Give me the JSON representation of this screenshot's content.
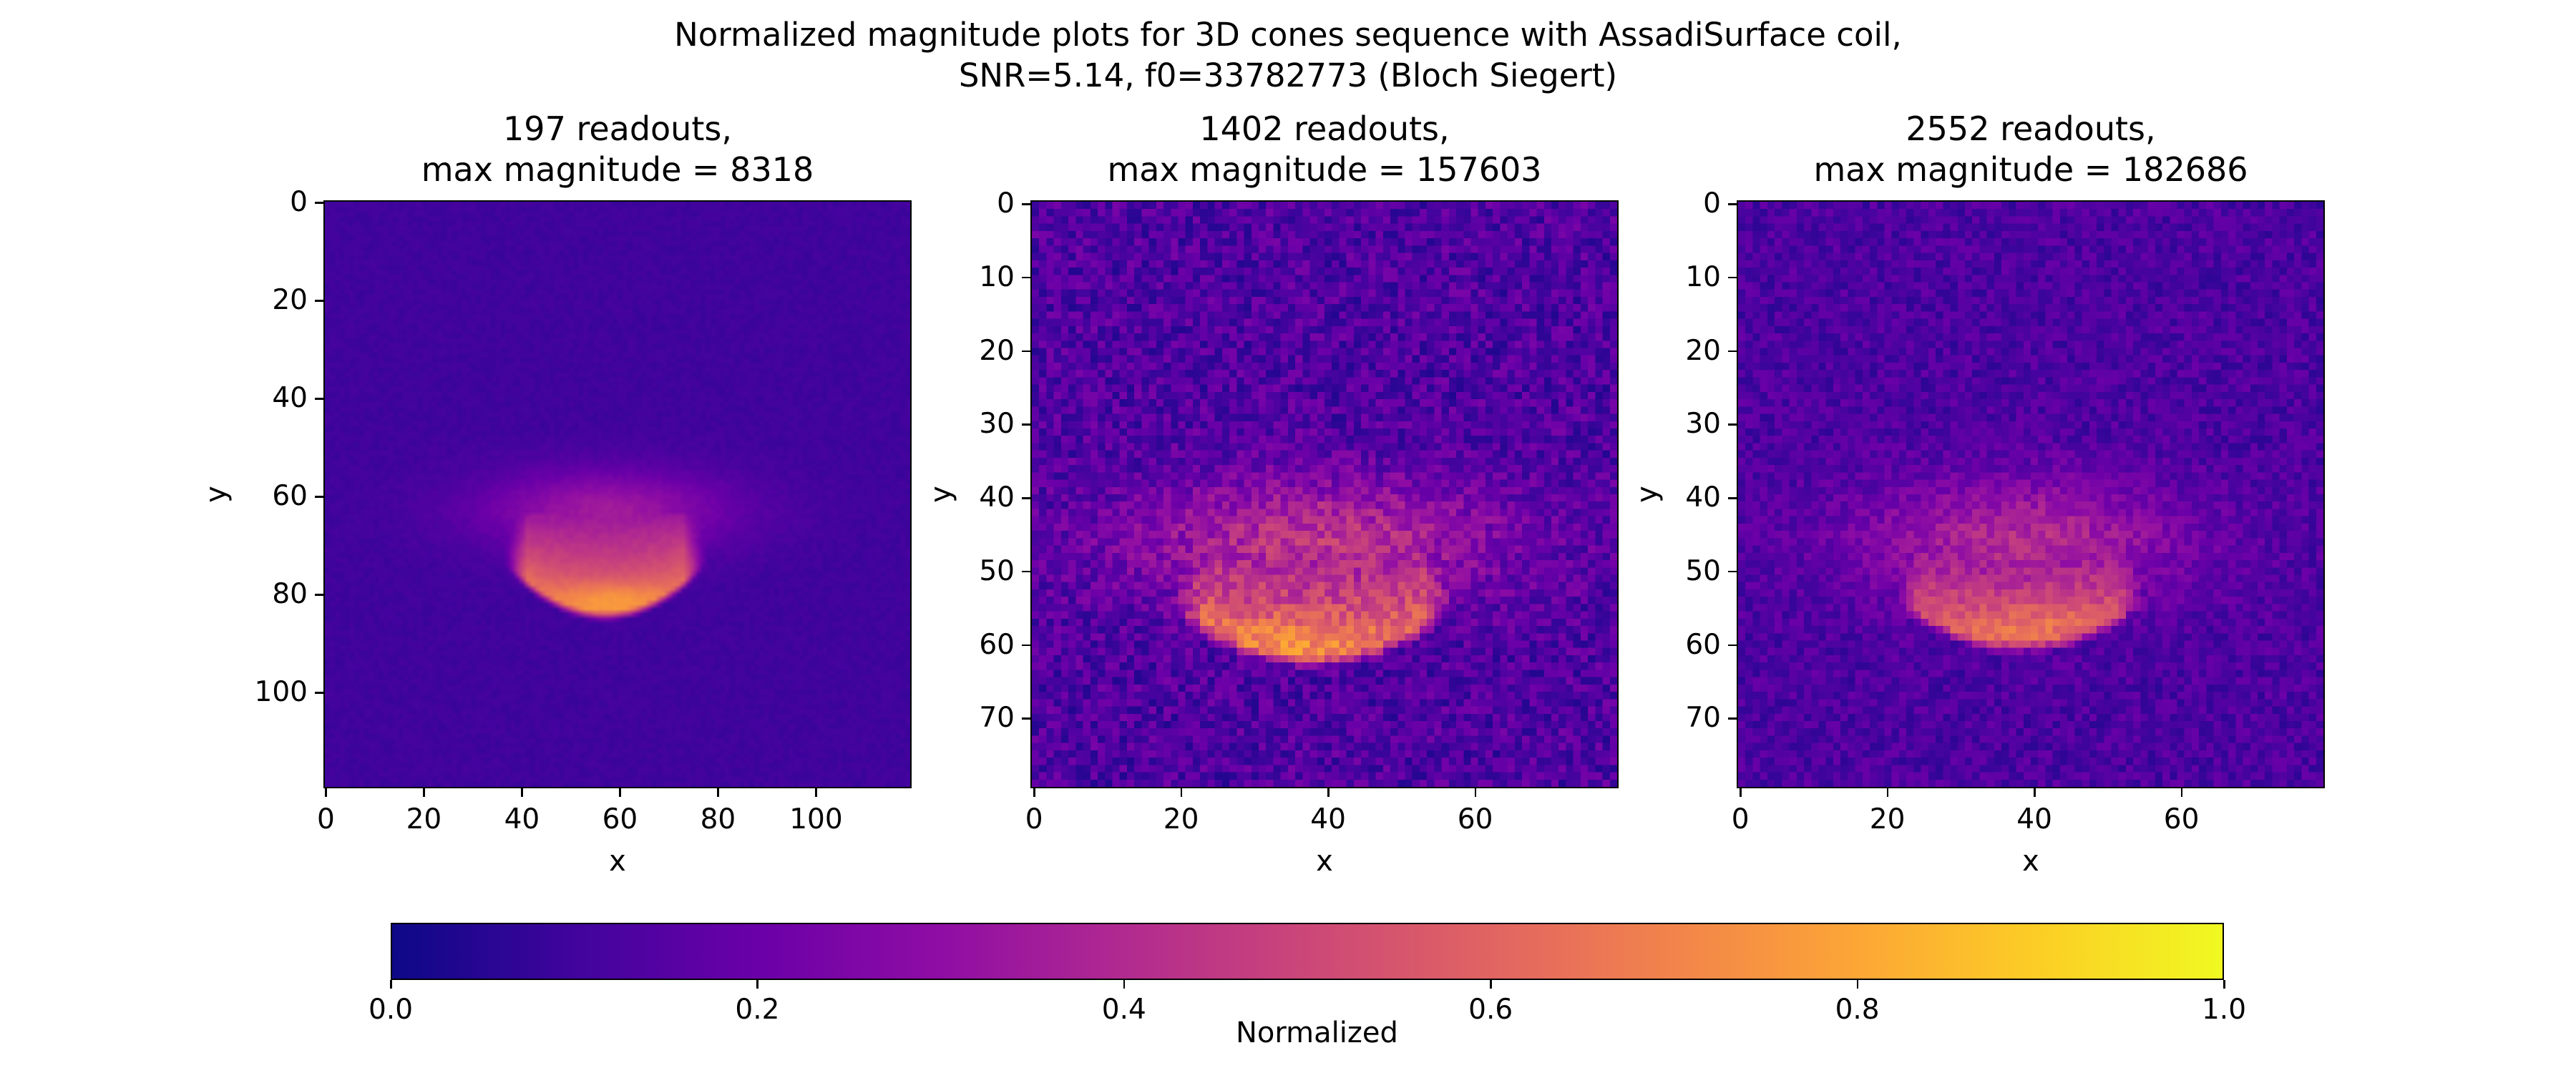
{
  "suptitle": "Normalized magnitude plots for 3D cones sequence with AssadiSurface coil,\nSNR=5.14, f0=33782773 (Bloch Siegert)",
  "colormap": {
    "name": "plasma",
    "stops": [
      "#0d0887",
      "#41049d",
      "#6a00a8",
      "#8f0da4",
      "#b12a90",
      "#cc4778",
      "#e16462",
      "#f2844b",
      "#fca636",
      "#fcce25",
      "#f0f921"
    ]
  },
  "colorbar": {
    "label": "Normalized",
    "range": [
      0.0,
      1.0
    ],
    "ticks": [
      "0.0",
      "0.2",
      "0.4",
      "0.6",
      "0.8",
      "1.0"
    ],
    "tick_values": [
      0.0,
      0.2,
      0.4,
      0.6,
      0.8,
      1.0
    ]
  },
  "chart_data": [
    {
      "type": "heatmap",
      "title": "197 readouts,\nmax magnitude = 8318",
      "xlabel": "x",
      "ylabel": "y",
      "xlim": [
        -0.5,
        119.5
      ],
      "ylim": [
        119.5,
        -0.5
      ],
      "xticks": [
        0,
        20,
        40,
        60,
        80,
        100
      ],
      "yticks": [
        0,
        20,
        40,
        60,
        80,
        100
      ],
      "grid_size": [
        120,
        120
      ],
      "max_magnitude": 8318,
      "background_level": 0.1,
      "noise_level": 0.03,
      "blob": {
        "center_x": 57,
        "center_y": 77,
        "half_width": 20,
        "top_y": 66,
        "bottom_y": 84,
        "peak": 1.0,
        "halo_peak": 0.25,
        "hotspot_x": 58,
        "hotspot_y": 81
      }
    },
    {
      "type": "heatmap",
      "title": "1402 readouts,\nmax magnitude = 157603",
      "xlabel": "x",
      "ylabel": "y",
      "xlim": [
        -0.5,
        79.5
      ],
      "ylim": [
        79.5,
        -0.5
      ],
      "xticks": [
        0,
        20,
        40,
        60
      ],
      "yticks": [
        0,
        10,
        20,
        30,
        40,
        50,
        60,
        70
      ],
      "grid_size": [
        80,
        80
      ],
      "max_magnitude": 157603,
      "background_level": 0.14,
      "noise_level": 0.1,
      "blob": {
        "center_x": 38,
        "center_y": 55,
        "half_width": 19,
        "top_y": 49,
        "bottom_y": 62,
        "peak": 0.93,
        "halo_peak": 0.3,
        "hotspot_x": 36,
        "hotspot_y": 59
      }
    },
    {
      "type": "heatmap",
      "title": "2552 readouts,\nmax magnitude = 182686",
      "xlabel": "x",
      "ylabel": "y",
      "xlim": [
        -0.5,
        79.5
      ],
      "ylim": [
        79.5,
        -0.5
      ],
      "xticks": [
        0,
        20,
        40,
        60
      ],
      "yticks": [
        0,
        10,
        20,
        30,
        40,
        50,
        60,
        70
      ],
      "grid_size": [
        80,
        80
      ],
      "max_magnitude": 182686,
      "background_level": 0.13,
      "noise_level": 0.07,
      "blob": {
        "center_x": 38,
        "center_y": 54,
        "half_width": 17,
        "top_y": 49,
        "bottom_y": 60,
        "peak": 0.85,
        "halo_peak": 0.28,
        "hotspot_x": 39,
        "hotspot_y": 57
      }
    }
  ]
}
